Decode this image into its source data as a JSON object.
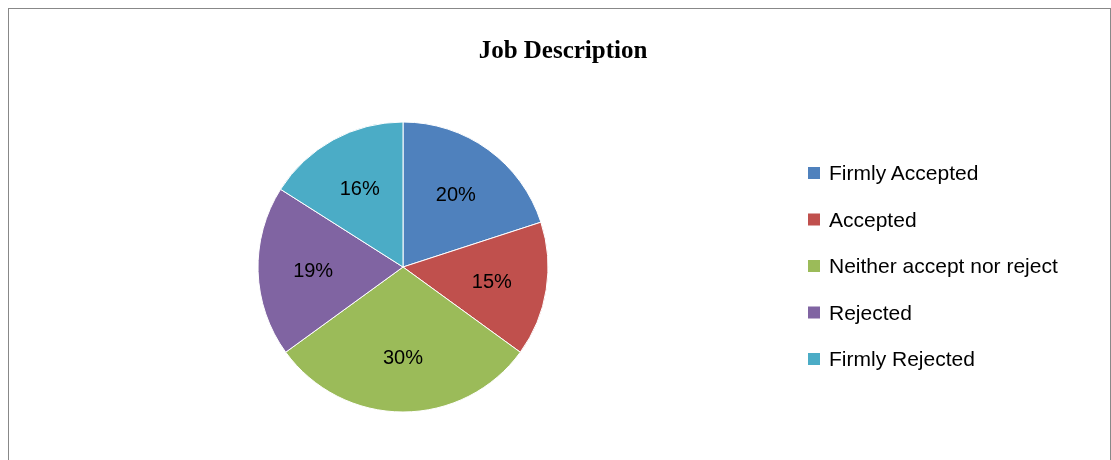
{
  "chart_data": {
    "type": "pie",
    "title": "Job Description",
    "categories": [
      "Firmly Accepted",
      "Accepted",
      "Neither accept nor reject",
      "Rejected",
      "Firmly Rejected"
    ],
    "values": [
      20,
      15,
      30,
      19,
      16
    ],
    "colors": [
      "#4f81bd",
      "#c0504d",
      "#9bbb59",
      "#8064a2",
      "#4bacc6"
    ],
    "value_labels": [
      "20%",
      "15%",
      "30%",
      "19%",
      "16%"
    ],
    "legend": "right"
  }
}
